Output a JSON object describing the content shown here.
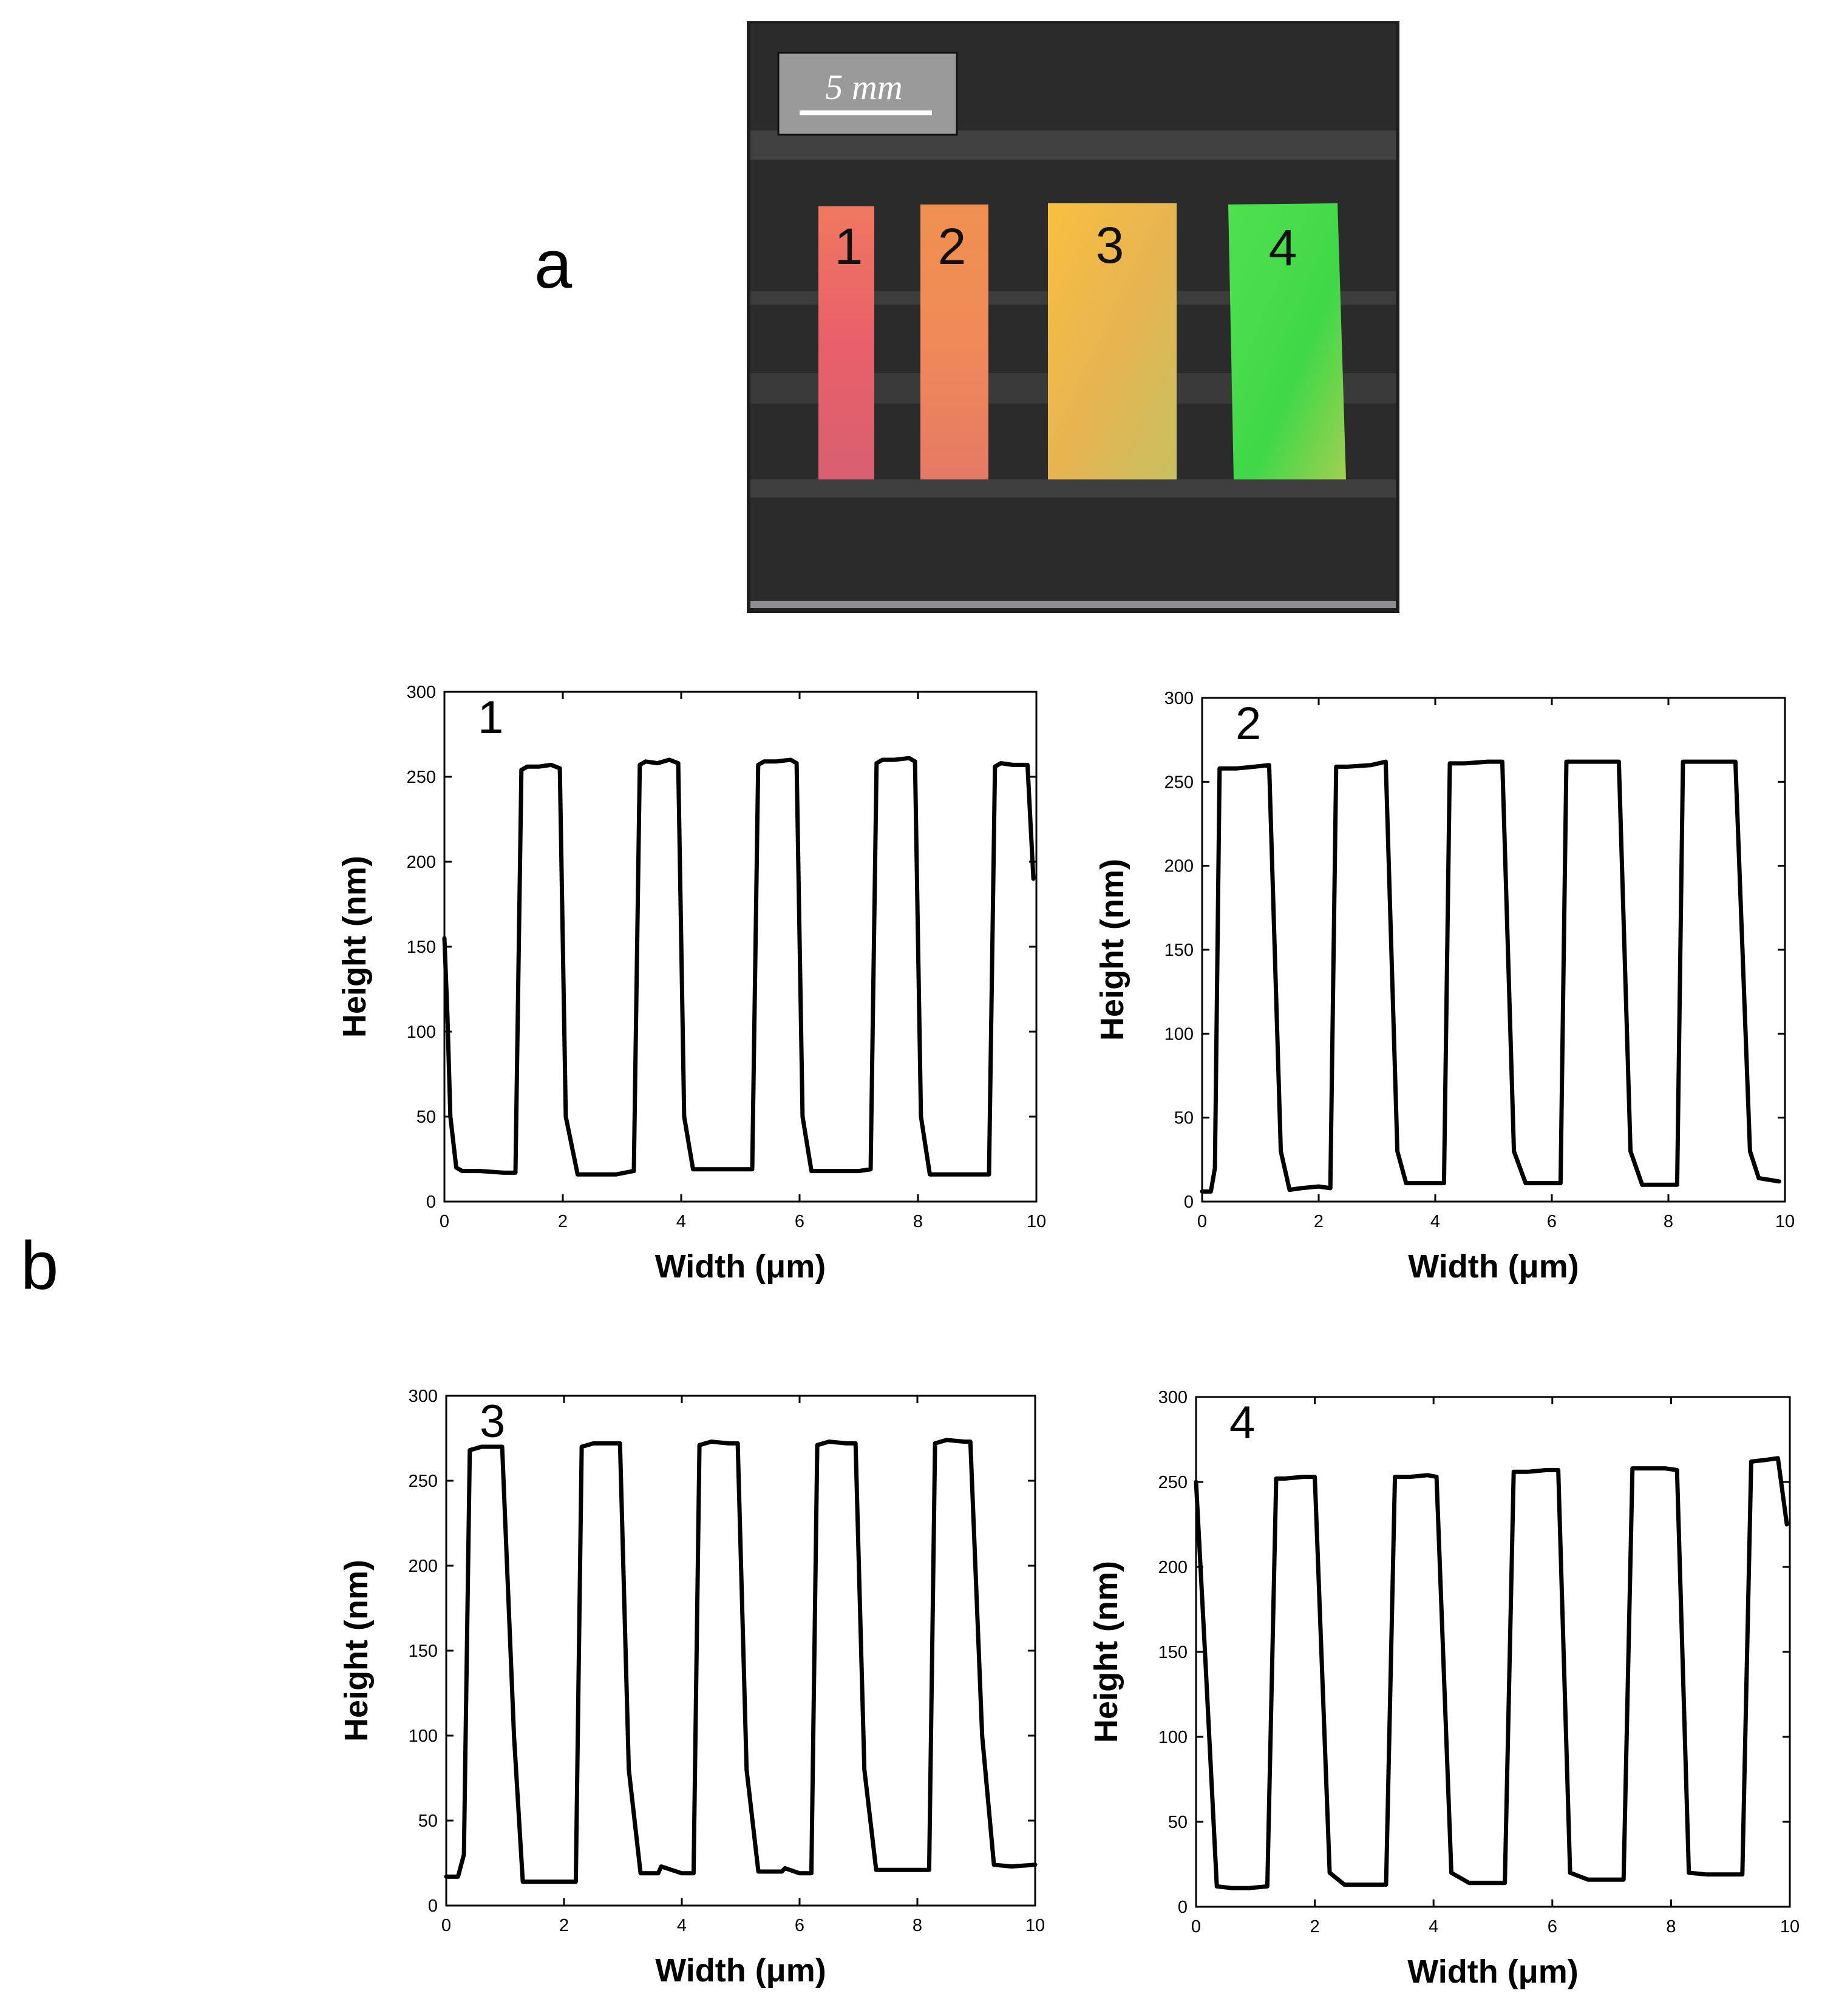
{
  "panel_labels": {
    "a": "a",
    "b": "b"
  },
  "photo": {
    "scale_bar_text": "5 mm",
    "strips": [
      {
        "label": "1",
        "colors": [
          "#f07860",
          "#e8606a",
          "#d86070"
        ]
      },
      {
        "label": "2",
        "colors": [
          "#f09050",
          "#f08a58",
          "#e47a66"
        ]
      },
      {
        "label": "3",
        "colors": [
          "#f8c040",
          "#e8b450",
          "#c8c060"
        ]
      },
      {
        "label": "4",
        "colors": [
          "#50e050",
          "#40d848",
          "#a0d050"
        ]
      }
    ],
    "background_color": "#2b2b2b"
  },
  "chart_data": [
    {
      "type": "line",
      "panel_number": "1",
      "xlabel": "Width (μm)",
      "ylabel": "Height (nm)",
      "xlim": [
        0,
        10
      ],
      "ylim": [
        0,
        300
      ],
      "xticks": [
        0,
        2,
        4,
        6,
        8,
        10
      ],
      "yticks": [
        0,
        50,
        100,
        150,
        200,
        250,
        300
      ],
      "x": [
        0,
        0.05,
        0.1,
        0.2,
        0.3,
        0.6,
        1.0,
        1.2,
        1.3,
        1.4,
        1.6,
        1.8,
        1.95,
        2.05,
        2.25,
        2.5,
        2.9,
        3.2,
        3.3,
        3.4,
        3.6,
        3.8,
        3.95,
        4.05,
        4.2,
        4.6,
        5.0,
        5.2,
        5.3,
        5.4,
        5.6,
        5.85,
        5.95,
        6.05,
        6.2,
        6.6,
        7.0,
        7.2,
        7.3,
        7.4,
        7.6,
        7.85,
        7.95,
        8.05,
        8.2,
        8.6,
        9.0,
        9.2,
        9.3,
        9.4,
        9.6,
        9.85,
        9.95
      ],
      "y": [
        155,
        110,
        50,
        20,
        18,
        18,
        17,
        17,
        254,
        256,
        256,
        257,
        255,
        50,
        16,
        16,
        16,
        18,
        257,
        259,
        258,
        260,
        258,
        50,
        19,
        19,
        19,
        19,
        257,
        259,
        259,
        260,
        258,
        50,
        18,
        18,
        18,
        19,
        258,
        260,
        260,
        261,
        259,
        50,
        16,
        16,
        16,
        16,
        256,
        258,
        257,
        257,
        190
      ]
    },
    {
      "type": "line",
      "panel_number": "2",
      "xlabel": "Width (μm)",
      "ylabel": "Height (nm)",
      "xlim": [
        0,
        10
      ],
      "ylim": [
        0,
        300
      ],
      "xticks": [
        0,
        2,
        4,
        6,
        8,
        10
      ],
      "yticks": [
        0,
        50,
        100,
        150,
        200,
        250,
        300
      ],
      "x": [
        0,
        0.15,
        0.22,
        0.3,
        0.6,
        0.9,
        1.15,
        1.35,
        1.5,
        1.7,
        2.0,
        2.2,
        2.3,
        2.5,
        2.9,
        3.15,
        3.35,
        3.5,
        3.8,
        4.15,
        4.25,
        4.5,
        4.9,
        5.15,
        5.35,
        5.55,
        5.8,
        6.15,
        6.25,
        6.5,
        6.9,
        7.15,
        7.35,
        7.55,
        7.8,
        8.15,
        8.25,
        8.5,
        8.9,
        9.15,
        9.4,
        9.55,
        9.9
      ],
      "y": [
        6,
        6,
        20,
        258,
        258,
        259,
        260,
        30,
        7,
        8,
        9,
        8,
        259,
        259,
        260,
        262,
        30,
        11,
        11,
        11,
        261,
        261,
        262,
        262,
        30,
        11,
        11,
        11,
        262,
        262,
        262,
        262,
        30,
        10,
        10,
        10,
        262,
        262,
        262,
        262,
        30,
        14,
        12
      ]
    },
    {
      "type": "line",
      "panel_number": "3",
      "xlabel": "Width (μm)",
      "ylabel": "Height (nm)",
      "xlim": [
        0,
        10
      ],
      "ylim": [
        0,
        300
      ],
      "xticks": [
        0,
        2,
        4,
        6,
        8,
        10
      ],
      "yticks": [
        0,
        50,
        100,
        150,
        200,
        250,
        300
      ],
      "x": [
        0,
        0.2,
        0.3,
        0.4,
        0.6,
        0.9,
        0.95,
        1.15,
        1.3,
        1.6,
        1.9,
        2.2,
        2.3,
        2.5,
        2.8,
        2.95,
        3.1,
        3.3,
        3.6,
        3.65,
        4.0,
        4.2,
        4.3,
        4.5,
        4.8,
        4.95,
        5.1,
        5.3,
        5.7,
        5.75,
        6.0,
        6.2,
        6.3,
        6.5,
        6.8,
        6.95,
        7.1,
        7.3,
        7.6,
        8.0,
        8.2,
        8.3,
        8.5,
        8.8,
        8.9,
        9.1,
        9.3,
        9.6,
        10
      ],
      "y": [
        17,
        17,
        30,
        268,
        270,
        270,
        270,
        100,
        14,
        14,
        14,
        14,
        270,
        272,
        272,
        272,
        80,
        19,
        19,
        23,
        19,
        19,
        271,
        273,
        272,
        272,
        80,
        20,
        20,
        22,
        19,
        19,
        271,
        273,
        272,
        272,
        80,
        21,
        21,
        21,
        21,
        272,
        274,
        273,
        273,
        100,
        24,
        23,
        24
      ]
    },
    {
      "type": "line",
      "panel_number": "4",
      "xlabel": "Width (μm)",
      "ylabel": "Height (nm)",
      "xlim": [
        0,
        10
      ],
      "ylim": [
        0,
        300
      ],
      "xticks": [
        0,
        2,
        4,
        6,
        8,
        10
      ],
      "yticks": [
        0,
        50,
        100,
        150,
        200,
        250,
        300
      ],
      "x": [
        0,
        0.15,
        0.35,
        0.6,
        0.9,
        1.2,
        1.35,
        1.5,
        1.8,
        2.0,
        2.25,
        2.5,
        3.0,
        3.2,
        3.35,
        3.6,
        3.9,
        4.05,
        4.3,
        4.6,
        5.05,
        5.2,
        5.35,
        5.6,
        5.9,
        6.1,
        6.3,
        6.6,
        7.05,
        7.2,
        7.35,
        7.6,
        7.9,
        8.1,
        8.3,
        8.6,
        9.05,
        9.2,
        9.35,
        9.6,
        9.8,
        9.95
      ],
      "y": [
        250,
        150,
        12,
        11,
        11,
        12,
        252,
        252,
        253,
        253,
        20,
        13,
        13,
        13,
        253,
        253,
        254,
        253,
        20,
        14,
        14,
        14,
        256,
        256,
        257,
        257,
        20,
        16,
        16,
        16,
        258,
        258,
        258,
        257,
        20,
        19,
        19,
        19,
        262,
        263,
        264,
        225
      ]
    }
  ]
}
